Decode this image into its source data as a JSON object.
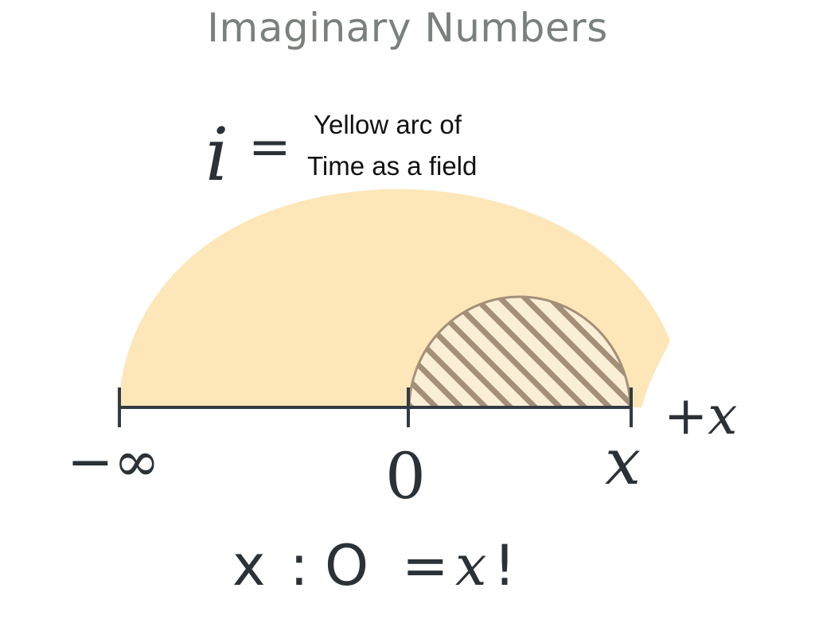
{
  "title": "Imaginary Numbers",
  "equation": {
    "symbol": "i",
    "equals": "=",
    "note_line1": "Yellow arc of",
    "note_line2": "Time as a field"
  },
  "axis": {
    "left_label": "−∞",
    "zero_label": "0",
    "x_label": "x",
    "direction_label": "+x"
  },
  "bottom_equation": {
    "left": "x",
    "ratio": ":",
    "circle": "O",
    "equals": "=",
    "right_var": "x",
    "bang": "!"
  },
  "colors": {
    "field": "#fde6b8",
    "axis": "#323b42",
    "hatch": "#a48f78",
    "hatch_fill": "#fbeed6",
    "title": "#7a807c",
    "text": "#2b3237"
  }
}
